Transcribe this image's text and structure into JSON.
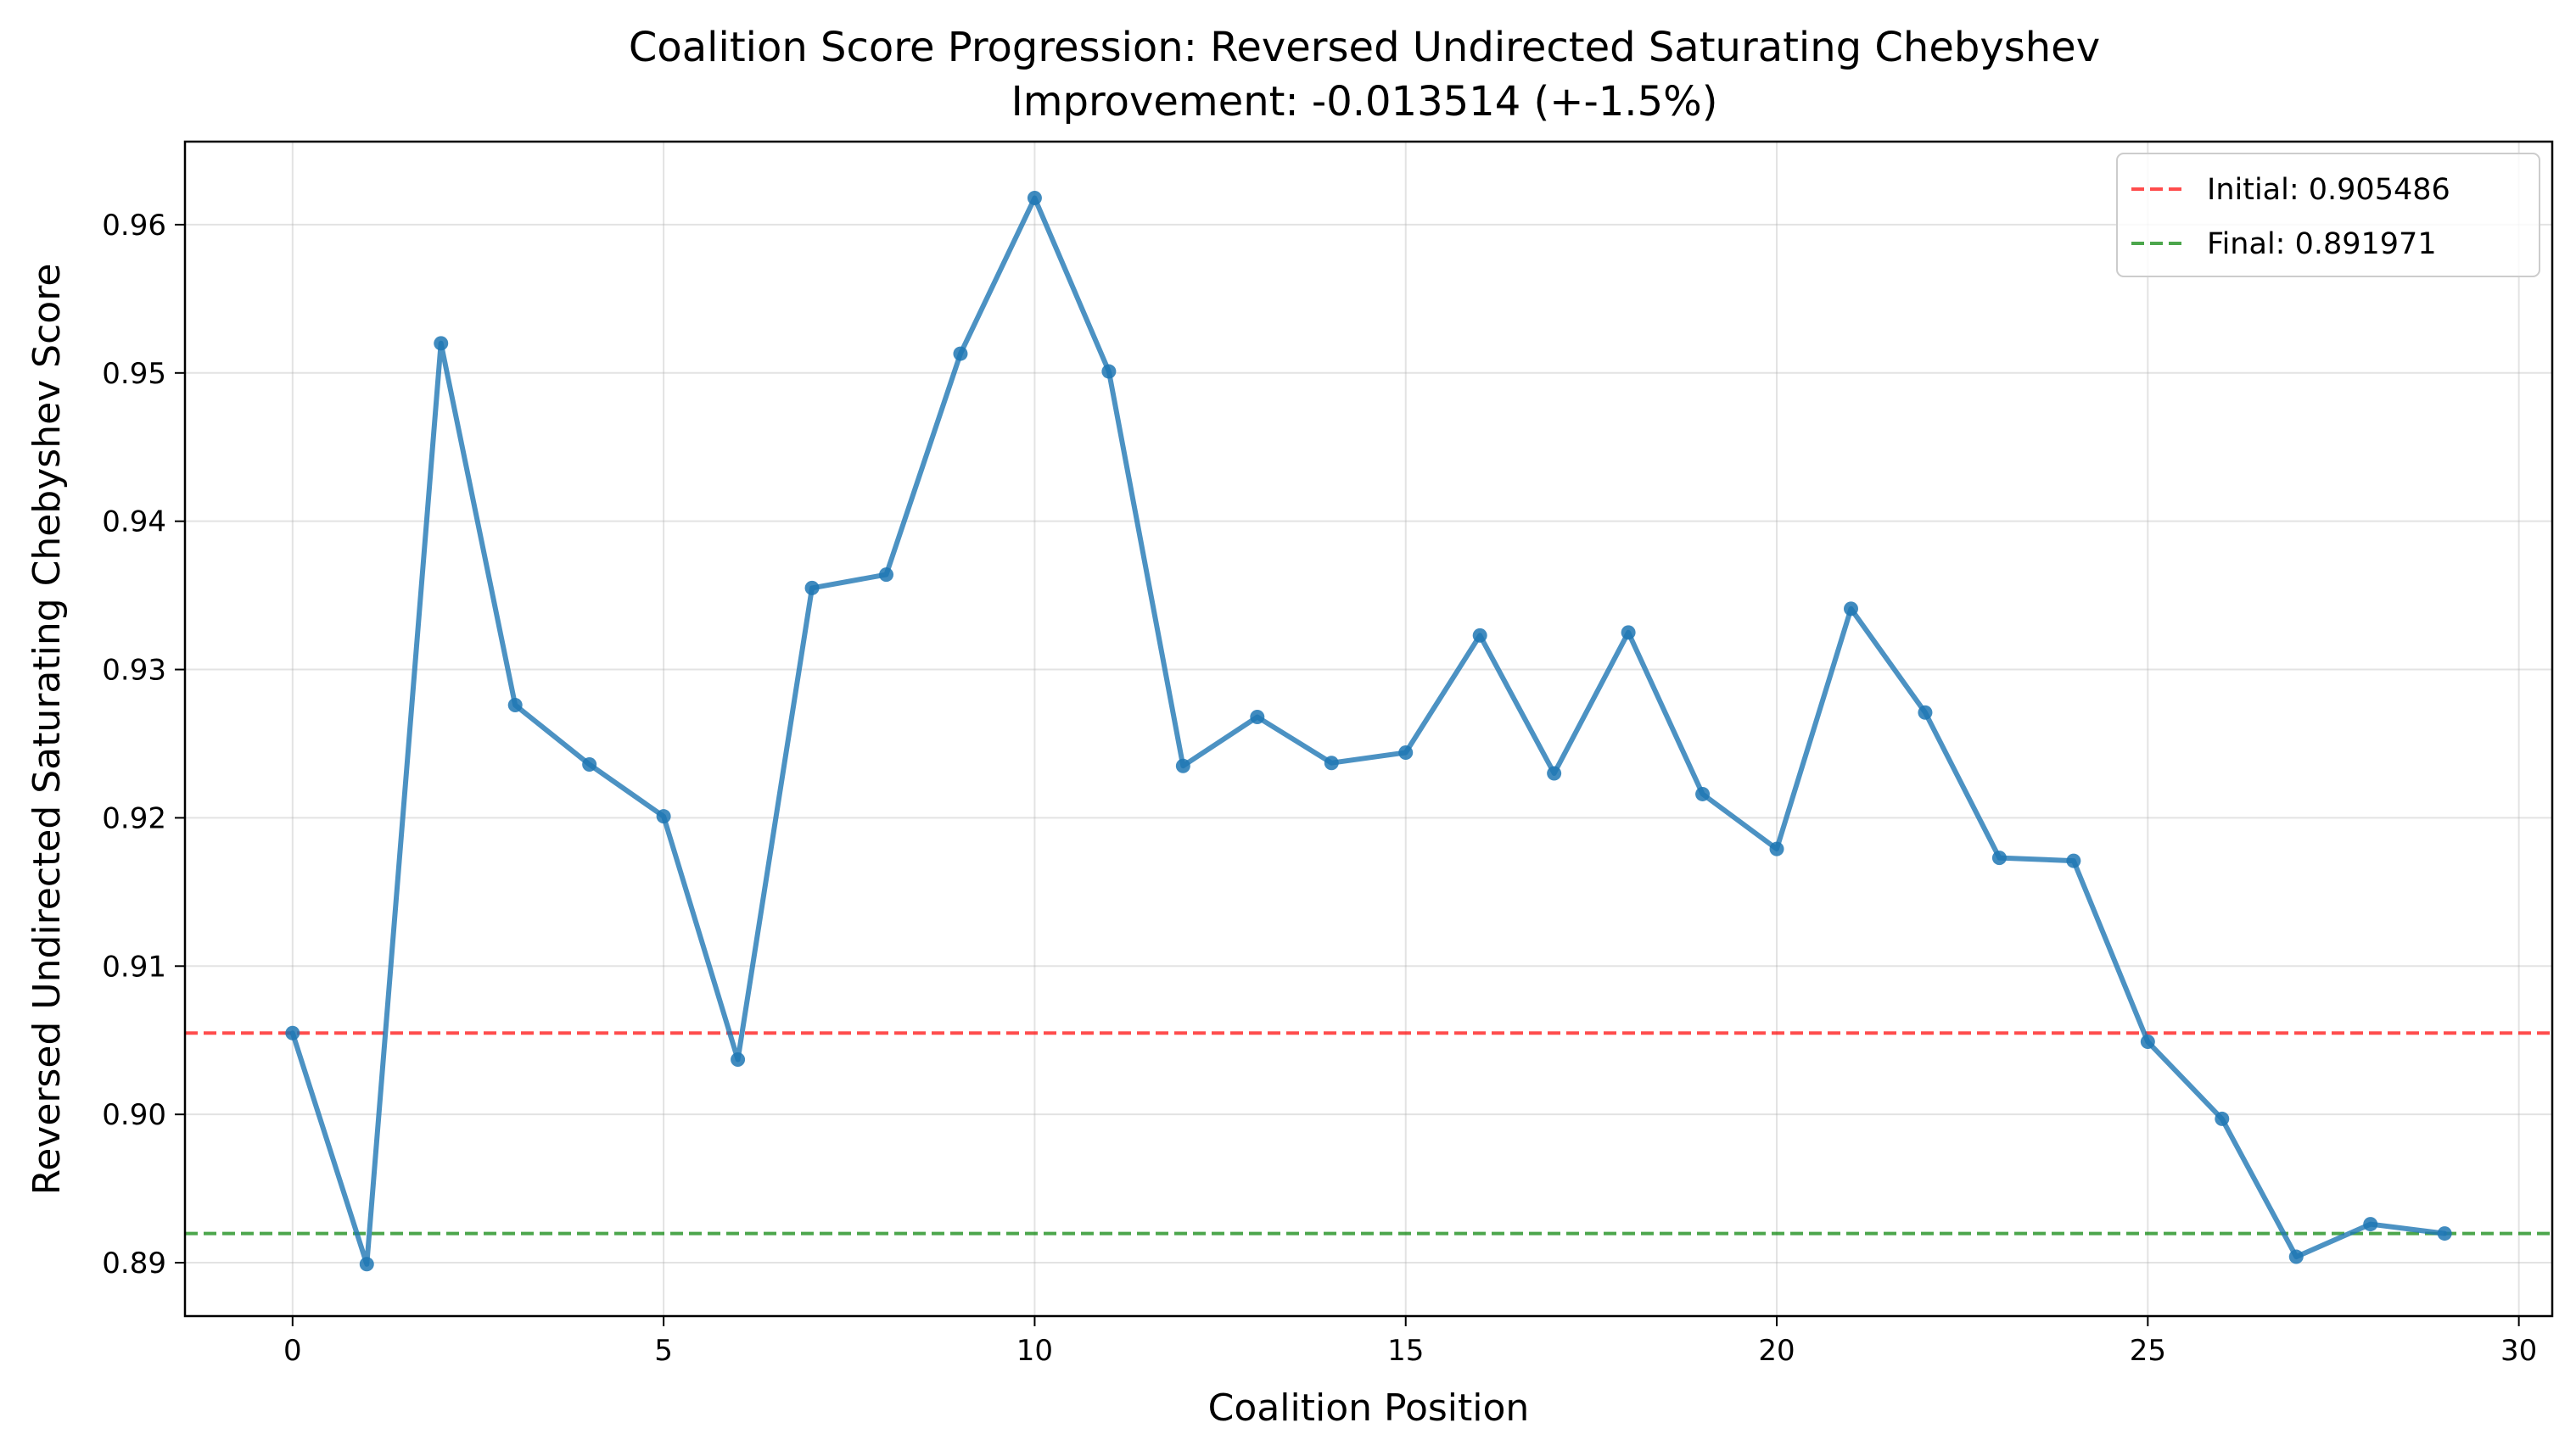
{
  "chart_data": {
    "type": "line",
    "title": "Coalition Score Progression: Reversed Undirected Saturating Chebyshev",
    "subtitle": "Improvement: -0.013514 (+-1.5%)",
    "xlabel": "Coalition Position",
    "ylabel": "Reversed Undirected Saturating Chebyshev Score",
    "xlim": [
      -1.45,
      30.45
    ],
    "ylim": [
      0.8864,
      0.9656
    ],
    "xticks": [
      0,
      5,
      10,
      15,
      20,
      25,
      30
    ],
    "xtick_labels": [
      "0",
      "5",
      "10",
      "15",
      "20",
      "25",
      "30"
    ],
    "yticks": [
      0.89,
      0.9,
      0.91,
      0.92,
      0.93,
      0.94,
      0.95,
      0.96
    ],
    "ytick_labels": [
      "0.89",
      "0.90",
      "0.91",
      "0.92",
      "0.93",
      "0.94",
      "0.95",
      "0.96"
    ],
    "grid": true,
    "legend_position": "top-right",
    "series": [
      {
        "color": "#1f77b4",
        "x": [
          0,
          1,
          2,
          3,
          4,
          5,
          6,
          7,
          8,
          9,
          10,
          11,
          12,
          13,
          14,
          15,
          16,
          17,
          18,
          19,
          20,
          21,
          22,
          23,
          24,
          25,
          26,
          27,
          28,
          29
        ],
        "y": [
          0.905486,
          0.8899,
          0.952,
          0.9276,
          0.9236,
          0.9201,
          0.9037,
          0.9355,
          0.9364,
          0.9513,
          0.9618,
          0.9501,
          0.9235,
          0.9268,
          0.9237,
          0.9244,
          0.9323,
          0.923,
          0.9325,
          0.9216,
          0.9179,
          0.9341,
          0.9271,
          0.9173,
          0.9171,
          0.9049,
          0.8997,
          0.8904,
          0.8926,
          0.891971
        ]
      }
    ],
    "reference_lines": [
      {
        "label": "Initial: 0.905486",
        "value": 0.905486,
        "color": "#ff0000"
      },
      {
        "label": "Final: 0.891971",
        "value": 0.891971,
        "color": "#008000"
      }
    ]
  }
}
